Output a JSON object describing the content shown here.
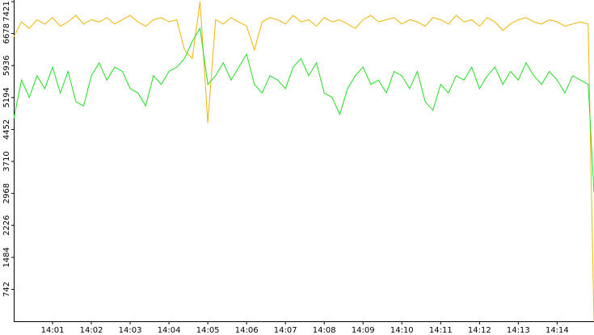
{
  "chart_data": {
    "type": "line",
    "x": [
      0,
      0.2,
      0.4,
      0.6,
      0.8,
      1,
      1.2,
      1.4,
      1.6,
      1.8,
      2,
      2.2,
      2.4,
      2.6,
      2.8,
      3,
      3.2,
      3.4,
      3.6,
      3.8,
      4,
      4.2,
      4.4,
      4.6,
      4.8,
      5,
      5.2,
      5.4,
      5.6,
      5.8,
      6,
      6.2,
      6.4,
      6.6,
      6.8,
      7,
      7.2,
      7.4,
      7.6,
      7.8,
      8,
      8.2,
      8.4,
      8.6,
      8.8,
      9,
      9.2,
      9.4,
      9.6,
      9.8,
      10,
      10.2,
      10.4,
      10.6,
      10.8,
      11,
      11.2,
      11.4,
      11.6,
      11.8,
      12,
      12.2,
      12.4,
      12.6,
      12.8,
      13,
      13.2,
      13.4,
      13.6,
      13.8,
      14,
      14.2,
      14.4,
      14.6,
      14.8,
      14.95
    ],
    "series": [
      {
        "color": "#f0b400",
        "values": [
          6600,
          6950,
          6800,
          7000,
          6900,
          7050,
          6850,
          6950,
          7100,
          6900,
          7000,
          6950,
          7050,
          6900,
          7000,
          7100,
          6950,
          6850,
          7000,
          7050,
          6950,
          7000,
          6300,
          6100,
          7421,
          4600,
          7000,
          6900,
          7050,
          6950,
          6850,
          6300,
          6950,
          7050,
          7000,
          6900,
          7100,
          6950,
          7000,
          6850,
          7050,
          6950,
          7000,
          6900,
          6800,
          7000,
          7100,
          6950,
          7000,
          7050,
          6900,
          7000,
          6950,
          6850,
          7050,
          7000,
          6900,
          7100,
          6950,
          7000,
          6850,
          7050,
          6950,
          6750,
          6900,
          7000,
          7050,
          6950,
          6900,
          7000,
          6950,
          6850,
          6900,
          6950,
          6900,
          0
        ]
      },
      {
        "color": "#22dd22",
        "values": [
          4700,
          5600,
          5200,
          5700,
          5400,
          5900,
          5300,
          5800,
          5100,
          5000,
          5700,
          6000,
          5600,
          5900,
          5800,
          5400,
          5300,
          5000,
          5700,
          5500,
          5800,
          5900,
          6100,
          6500,
          6800,
          5500,
          5700,
          6000,
          5600,
          5900,
          6200,
          5500,
          5300,
          5700,
          5600,
          5400,
          5900,
          6100,
          5700,
          6000,
          5300,
          5200,
          4800,
          5400,
          5700,
          5900,
          5500,
          5600,
          5300,
          5800,
          5700,
          5400,
          5800,
          5100,
          4900,
          5500,
          5300,
          5700,
          5600,
          5900,
          5400,
          5700,
          5900,
          5500,
          5800,
          5600,
          6000,
          5700,
          5500,
          5800,
          5600,
          5300,
          5700,
          5600,
          5500,
          3000
        ]
      }
    ],
    "xlim": [
      0,
      14.95
    ],
    "xticks": [
      {
        "value": 1,
        "label": "14:01"
      },
      {
        "value": 2,
        "label": "14:02"
      },
      {
        "value": 3,
        "label": "14:03"
      },
      {
        "value": 4,
        "label": "14:04"
      },
      {
        "value": 5,
        "label": "14:05"
      },
      {
        "value": 6,
        "label": "14:06"
      },
      {
        "value": 7,
        "label": "14:07"
      },
      {
        "value": 8,
        "label": "14:08"
      },
      {
        "value": 9,
        "label": "14:09"
      },
      {
        "value": 10,
        "label": "14:10"
      },
      {
        "value": 11,
        "label": "14:11"
      },
      {
        "value": 12,
        "label": "14:12"
      },
      {
        "value": 13,
        "label": "14:13"
      },
      {
        "value": 14,
        "label": "14:14"
      }
    ],
    "ylim": [
      0,
      7421
    ],
    "yticks": [
      742,
      1484,
      2226,
      2968,
      3710,
      4452,
      5194,
      5936,
      6678,
      7421
    ],
    "grid": false
  }
}
